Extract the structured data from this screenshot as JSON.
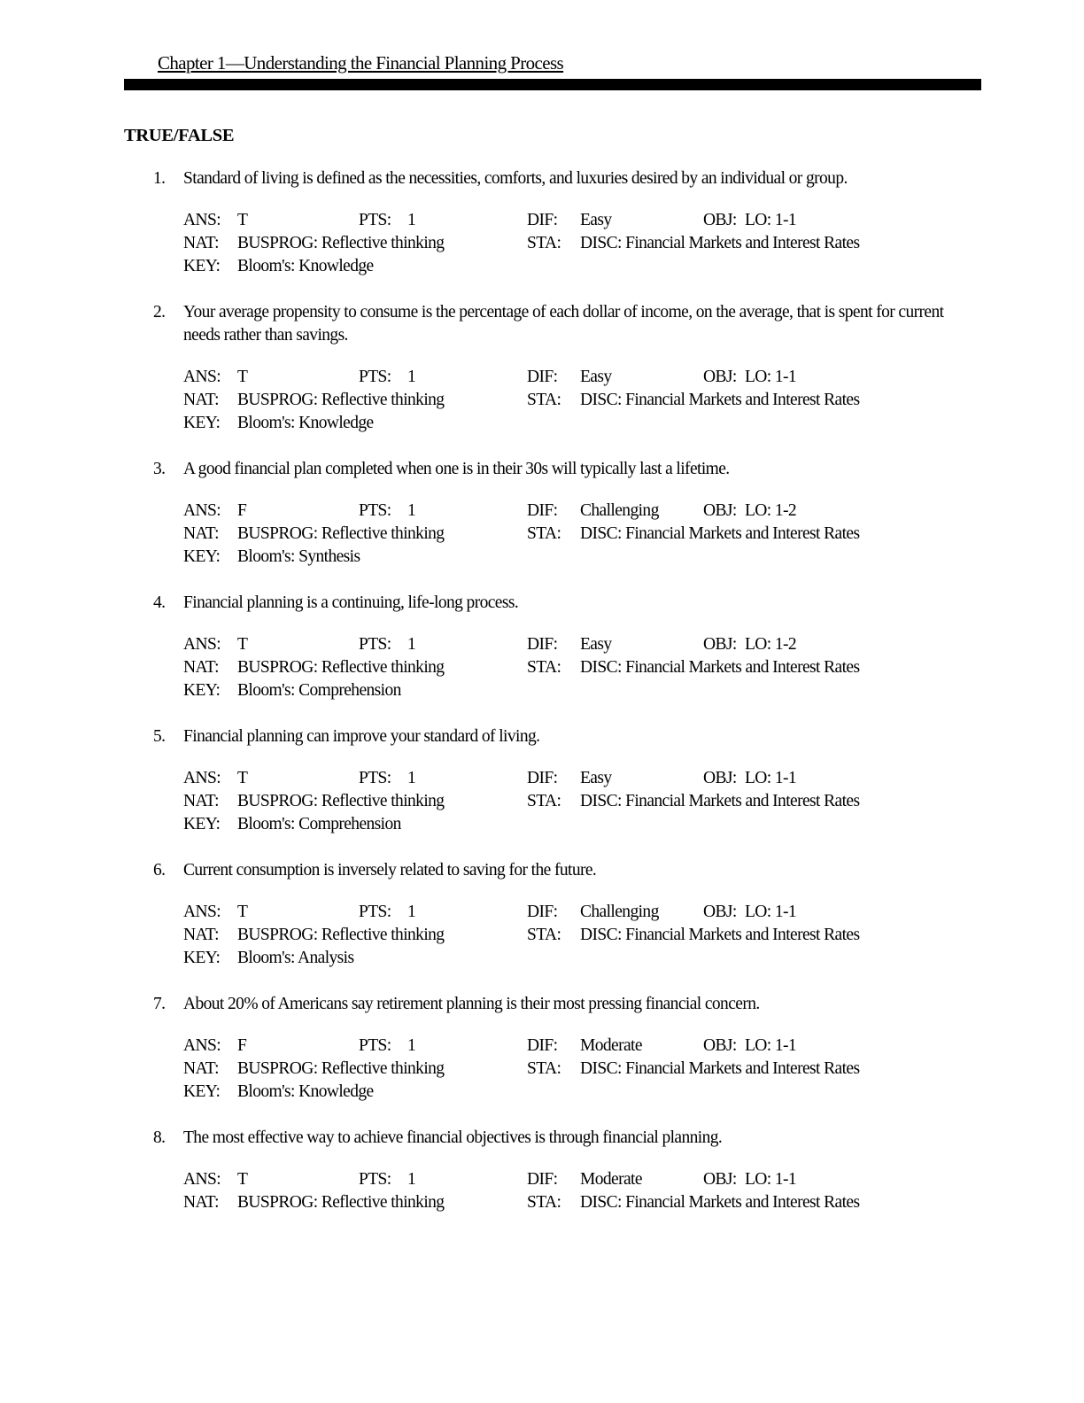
{
  "header": {
    "title": "Chapter 1—Understanding the Financial Planning Process"
  },
  "section": {
    "title": "TRUE/FALSE"
  },
  "labels": {
    "ans": "ANS:",
    "pts": "PTS:",
    "dif": "DIF:",
    "obj": "OBJ:",
    "nat": "NAT:",
    "sta": "STA:",
    "key": "KEY:"
  },
  "questions": [
    {
      "number": "1.",
      "text": "Standard of living is defined as the necessities, comforts, and luxuries desired by an individual or group.",
      "meta": {
        "ans": "T",
        "pts": "1",
        "dif": "Easy",
        "obj": "LO: 1-1",
        "nat": "BUSPROG: Reflective thinking",
        "sta": "DISC: Financial Markets and Interest Rates",
        "key": "Bloom's: Knowledge"
      }
    },
    {
      "number": "2.",
      "text": "Your average propensity to consume is the percentage of each dollar of income, on the average, that is spent for current needs rather than savings.",
      "meta": {
        "ans": "T",
        "pts": "1",
        "dif": "Easy",
        "obj": "LO: 1-1",
        "nat": "BUSPROG: Reflective thinking",
        "sta": "DISC: Financial Markets and Interest Rates",
        "key": "Bloom's: Knowledge"
      }
    },
    {
      "number": "3.",
      "text": "A good financial plan completed when one is in their 30s will typically last a lifetime.",
      "meta": {
        "ans": "F",
        "pts": "1",
        "dif": "Challenging",
        "obj": "LO: 1-2",
        "nat": "BUSPROG: Reflective thinking",
        "sta": "DISC: Financial Markets and Interest Rates",
        "key": "Bloom's: Synthesis"
      }
    },
    {
      "number": "4.",
      "text": "Financial planning is a continuing, life-long process.",
      "meta": {
        "ans": "T",
        "pts": "1",
        "dif": "Easy",
        "obj": "LO: 1-2",
        "nat": "BUSPROG: Reflective thinking",
        "sta": "DISC: Financial Markets and Interest Rates",
        "key": "Bloom's: Comprehension"
      }
    },
    {
      "number": "5.",
      "text": "Financial planning can improve your standard of living.",
      "meta": {
        "ans": "T",
        "pts": "1",
        "dif": "Easy",
        "obj": "LO: 1-1",
        "nat": "BUSPROG: Reflective thinking",
        "sta": "DISC: Financial Markets and Interest Rates",
        "key": "Bloom's: Comprehension"
      }
    },
    {
      "number": "6.",
      "text": "Current consumption is inversely related to saving for the future.",
      "meta": {
        "ans": "T",
        "pts": "1",
        "dif": "Challenging",
        "obj": "LO: 1-1",
        "nat": "BUSPROG: Reflective thinking",
        "sta": "DISC: Financial Markets and Interest Rates",
        "key": "Bloom's: Analysis"
      }
    },
    {
      "number": "7.",
      "text": "About 20% of Americans say retirement planning is their most pressing financial concern.",
      "meta": {
        "ans": "F",
        "pts": "1",
        "dif": "Moderate",
        "obj": "LO: 1-1",
        "nat": "BUSPROG: Reflective thinking",
        "sta": "DISC: Financial Markets and Interest Rates",
        "key": "Bloom's: Knowledge"
      }
    },
    {
      "number": "8.",
      "text": "The most effective way to achieve financial objectives is through financial planning.",
      "meta": {
        "ans": "T",
        "pts": "1",
        "dif": "Moderate",
        "obj": "LO: 1-1",
        "nat": "BUSPROG: Reflective thinking",
        "sta": "DISC: Financial Markets and Interest Rates"
      }
    }
  ]
}
